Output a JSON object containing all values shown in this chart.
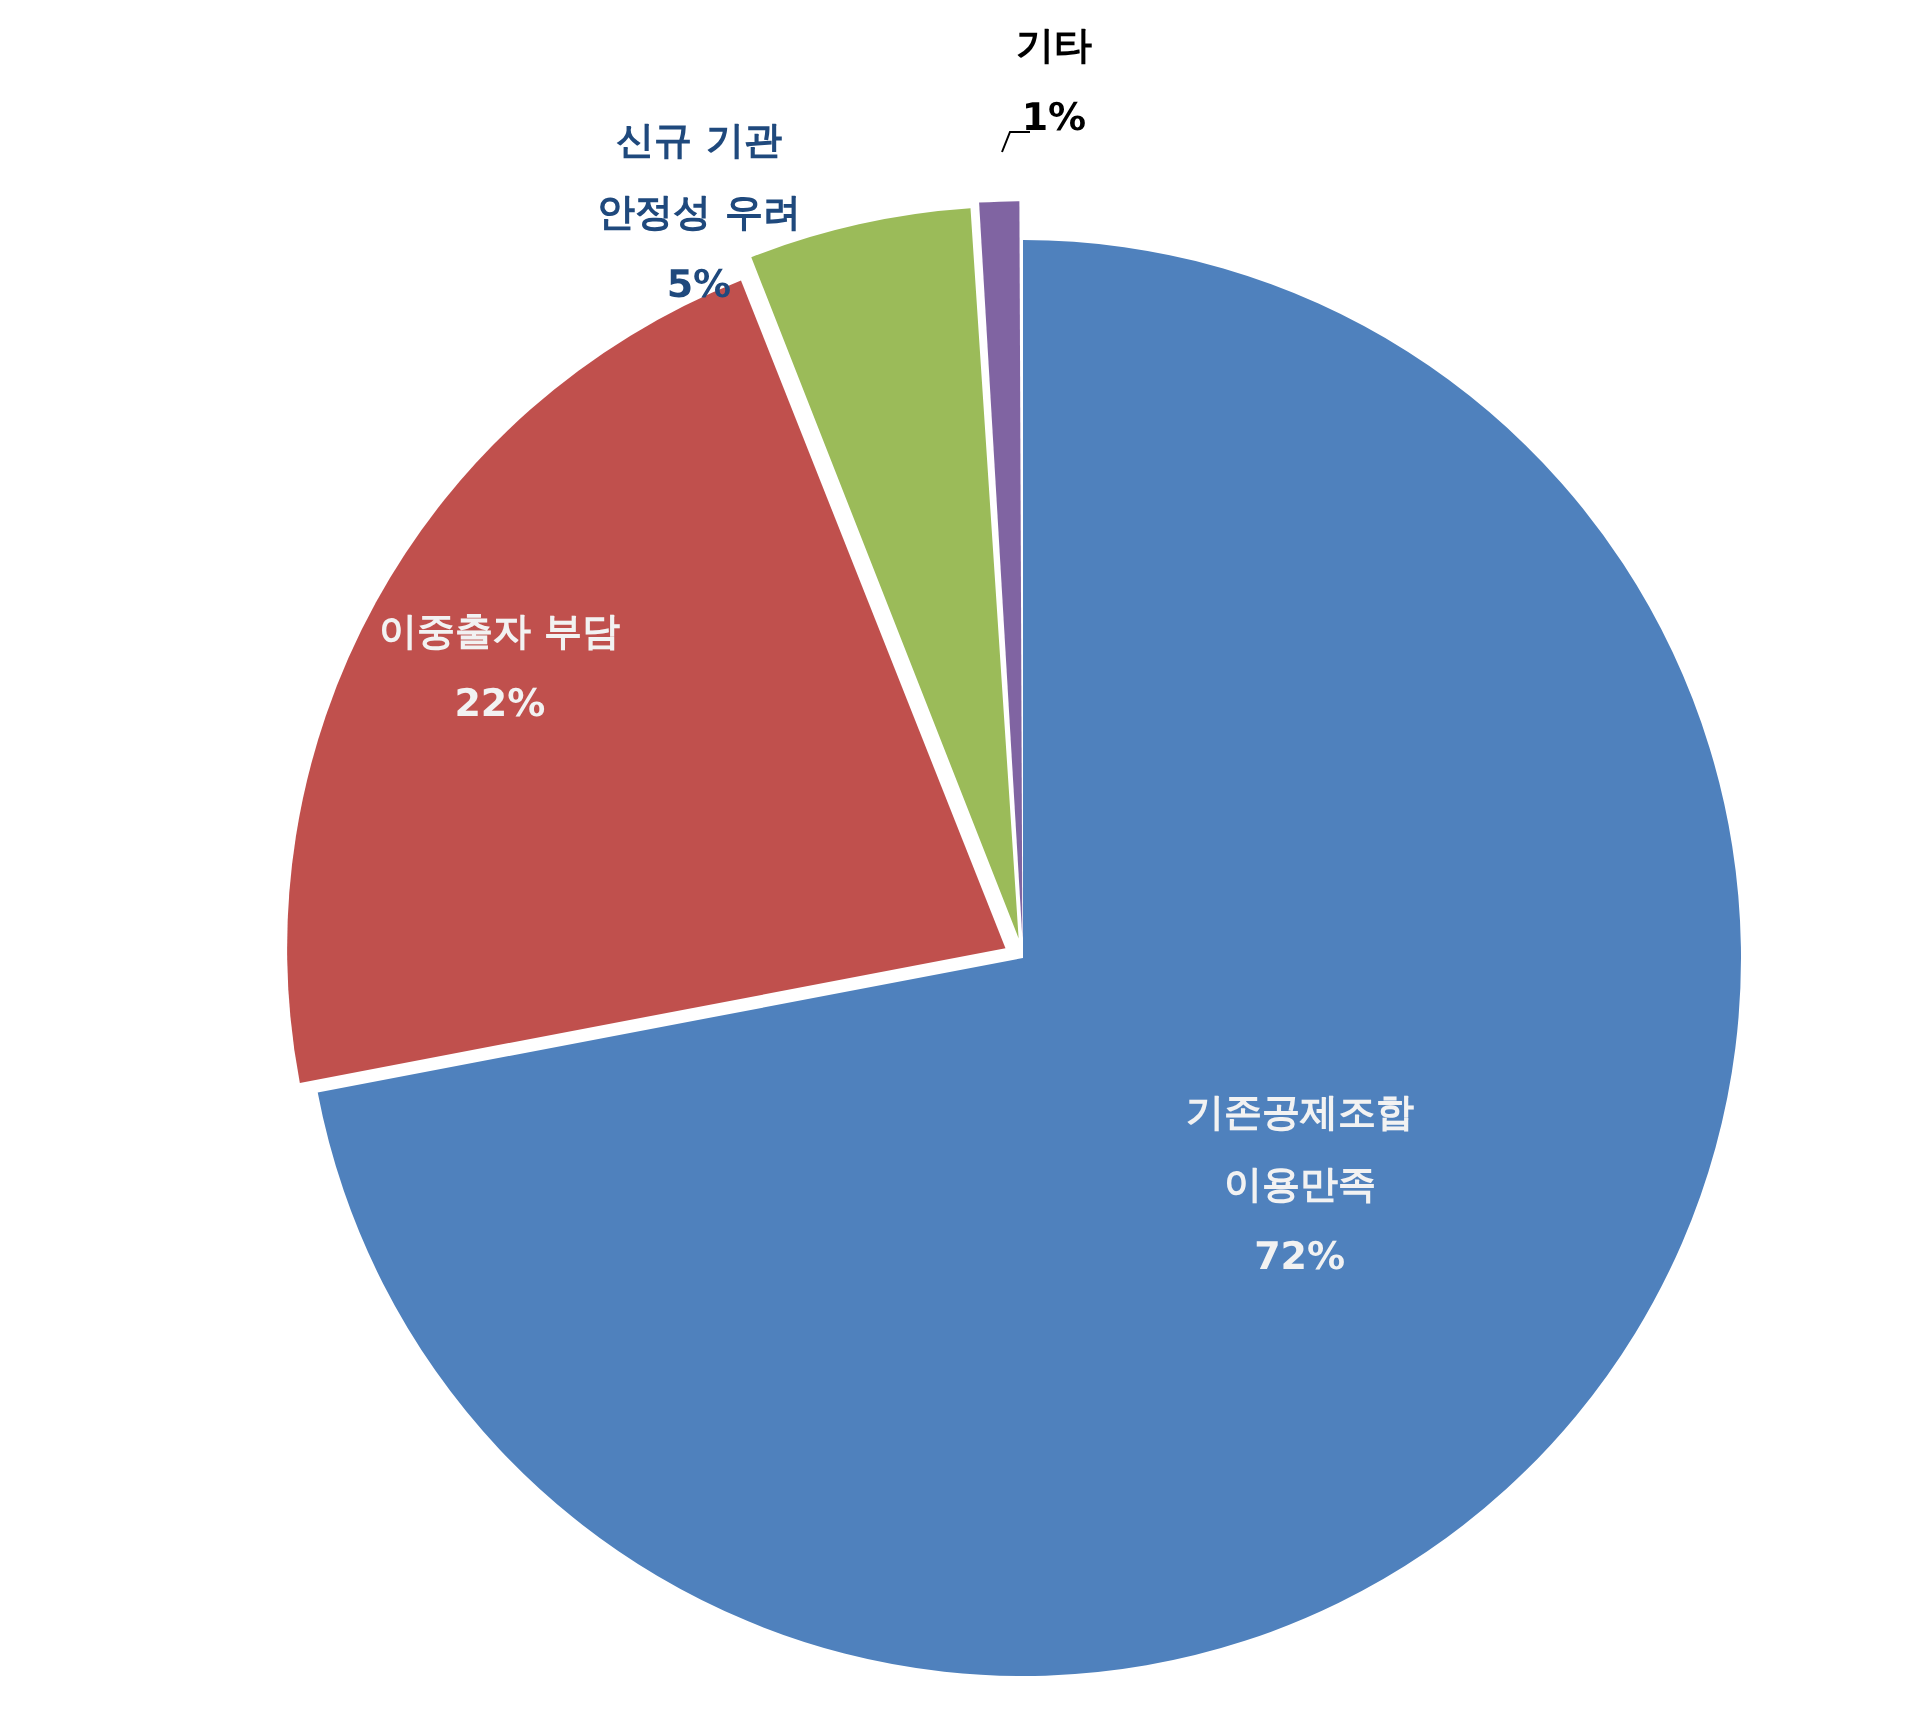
{
  "chart_data": {
    "type": "pie",
    "categories": [
      "기존공제조합\n이용만족",
      "이중출자 부담",
      "신규 기관\n안정성 우려",
      "기타"
    ],
    "values": [
      72,
      22,
      5,
      1
    ],
    "colors": [
      "#4f81bd",
      "#c0504d",
      "#9bbb59",
      "#8064a2"
    ],
    "value_labels": [
      "72%",
      "22%",
      "5%",
      "1%"
    ]
  }
}
